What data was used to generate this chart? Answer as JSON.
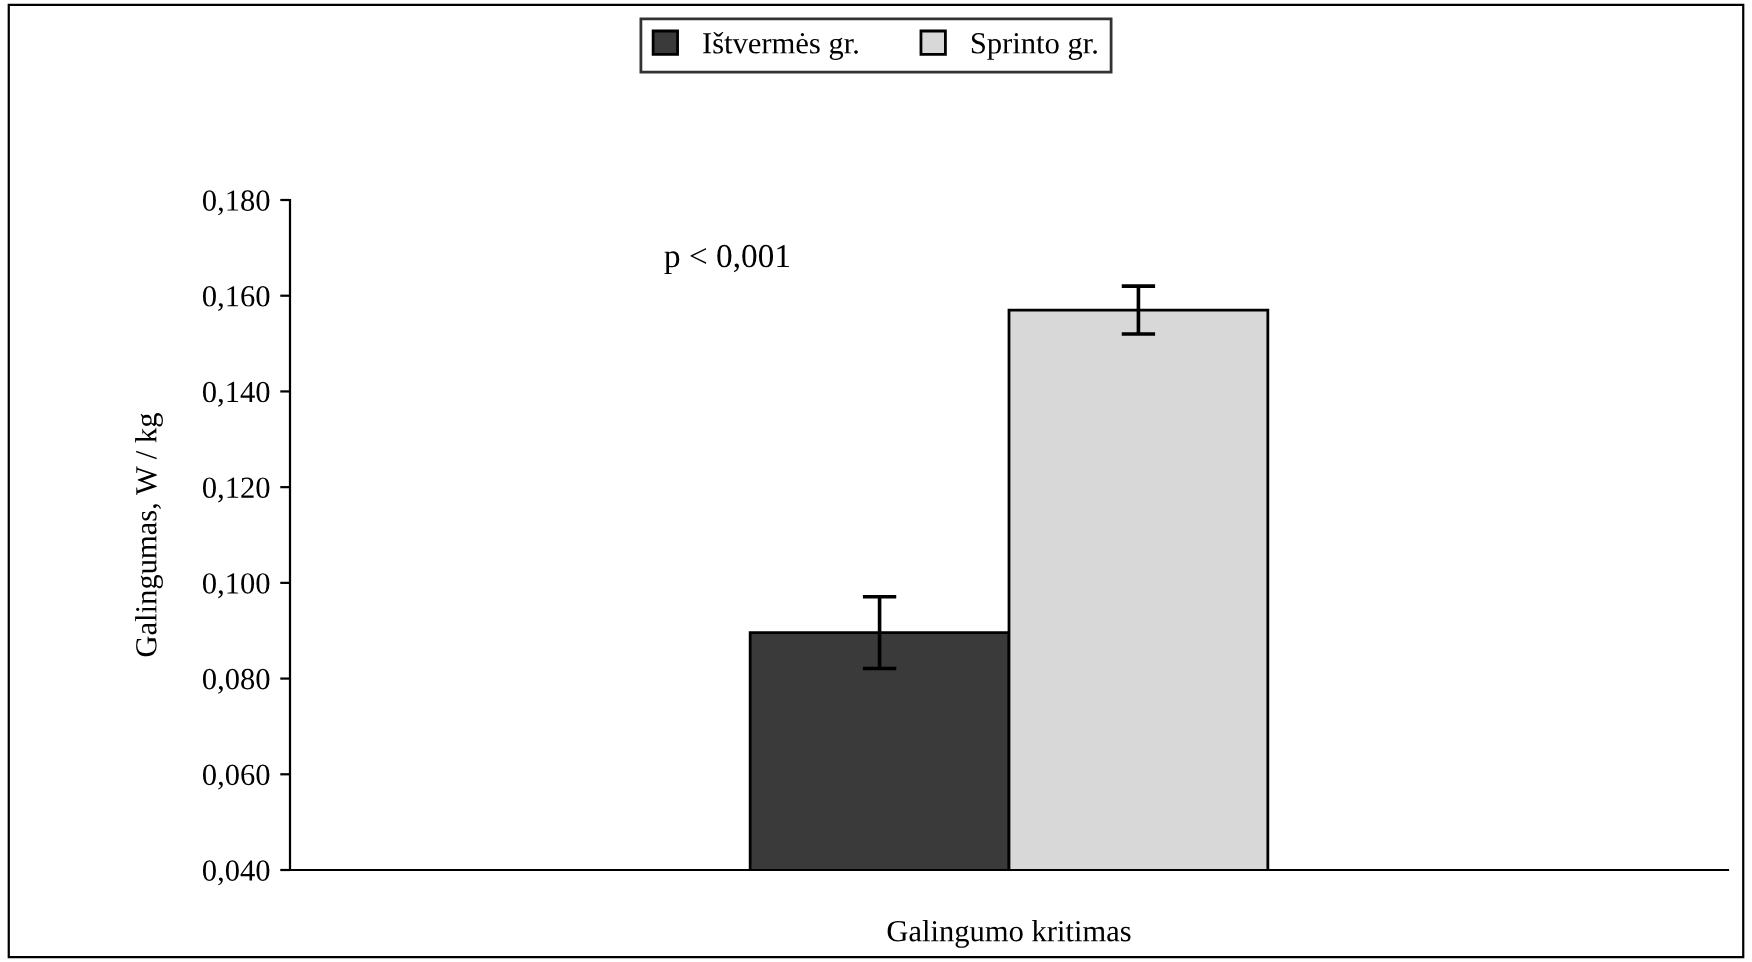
{
  "chart_data": {
    "type": "bar",
    "ylabel": "Galingumas, W / kg",
    "categories": [
      "Galingumo kritimas"
    ],
    "series": [
      {
        "name": "Ištvermės gr.",
        "color": "#3a3a3a",
        "values": [
          0.0896
        ],
        "errors": [
          0.0075
        ]
      },
      {
        "name": "Sprinto gr.",
        "color": "#d8d8d8",
        "values": [
          0.157
        ],
        "errors": [
          0.005
        ]
      }
    ],
    "ylim": [
      0.04,
      0.18
    ],
    "yticks": [
      {
        "value": 0.04,
        "label": "0,040"
      },
      {
        "value": 0.06,
        "label": "0,060"
      },
      {
        "value": 0.08,
        "label": "0,080"
      },
      {
        "value": 0.1,
        "label": "0,100"
      },
      {
        "value": 0.12,
        "label": "0,120"
      },
      {
        "value": 0.14,
        "label": "0,140"
      },
      {
        "value": 0.16,
        "label": "0,160"
      },
      {
        "value": 0.18,
        "label": "0,180"
      }
    ],
    "annotations": [
      "p < 0,001"
    ],
    "legend": "top",
    "grid": false
  }
}
